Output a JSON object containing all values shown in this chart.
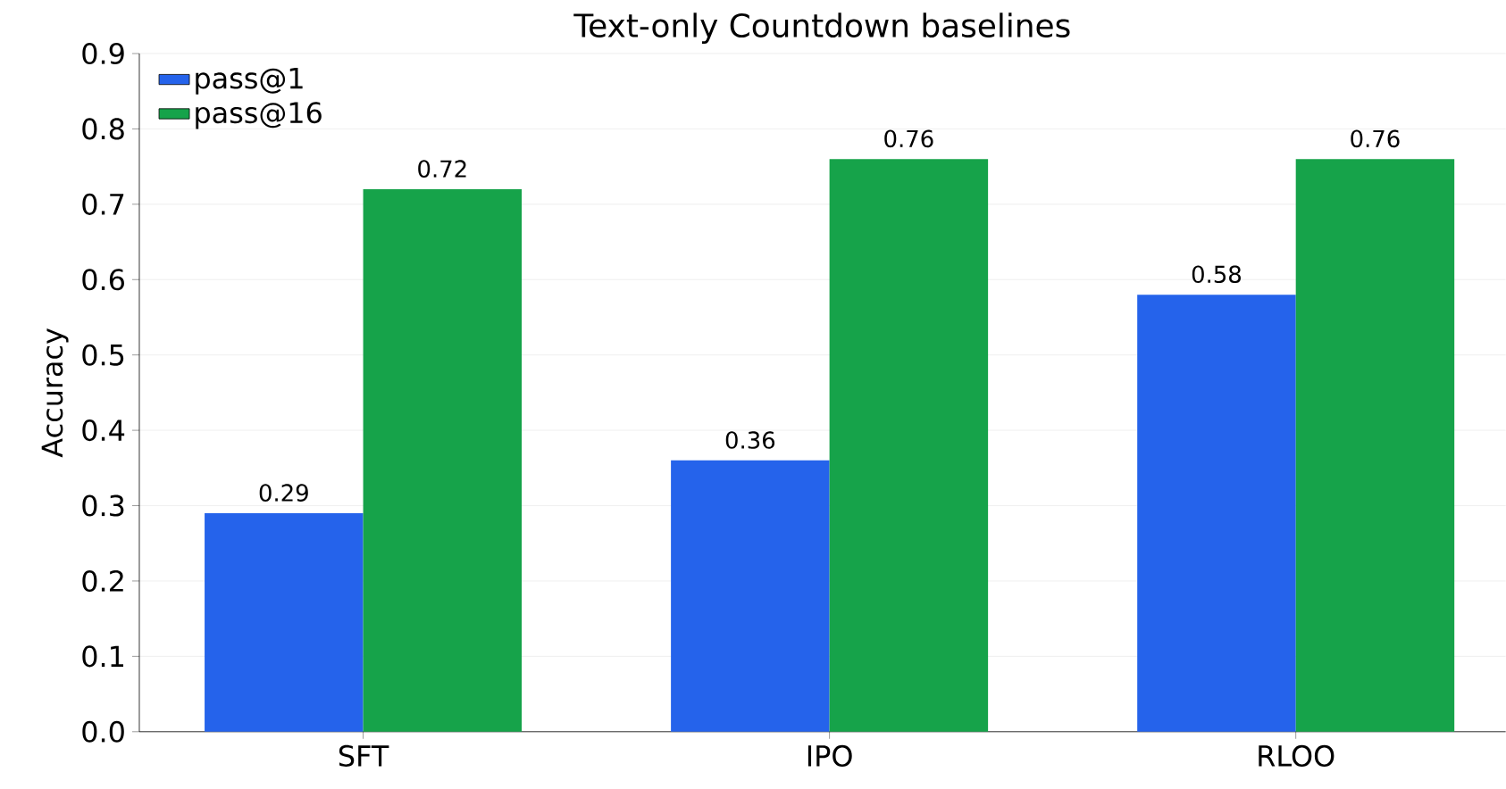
{
  "chart_data": {
    "type": "bar",
    "title": "Text-only Countdown baselines",
    "ylabel": "Accuracy",
    "categories": [
      "SFT",
      "IPO",
      "RLOO"
    ],
    "series": [
      {
        "name": "pass@1",
        "color": "#2563eb",
        "values": [
          0.29,
          0.36,
          0.58
        ]
      },
      {
        "name": "pass@16",
        "color": "#16a34a",
        "values": [
          0.72,
          0.76,
          0.76
        ]
      }
    ],
    "ylim": [
      0,
      0.9
    ],
    "yticks": [
      {
        "value": 0,
        "label": "0.0"
      },
      0.1,
      0.2,
      0.3,
      0.4,
      0.5,
      0.6,
      0.7,
      0.8,
      0.9
    ],
    "grid": "y",
    "legend": "top left",
    "data_labels": true
  }
}
